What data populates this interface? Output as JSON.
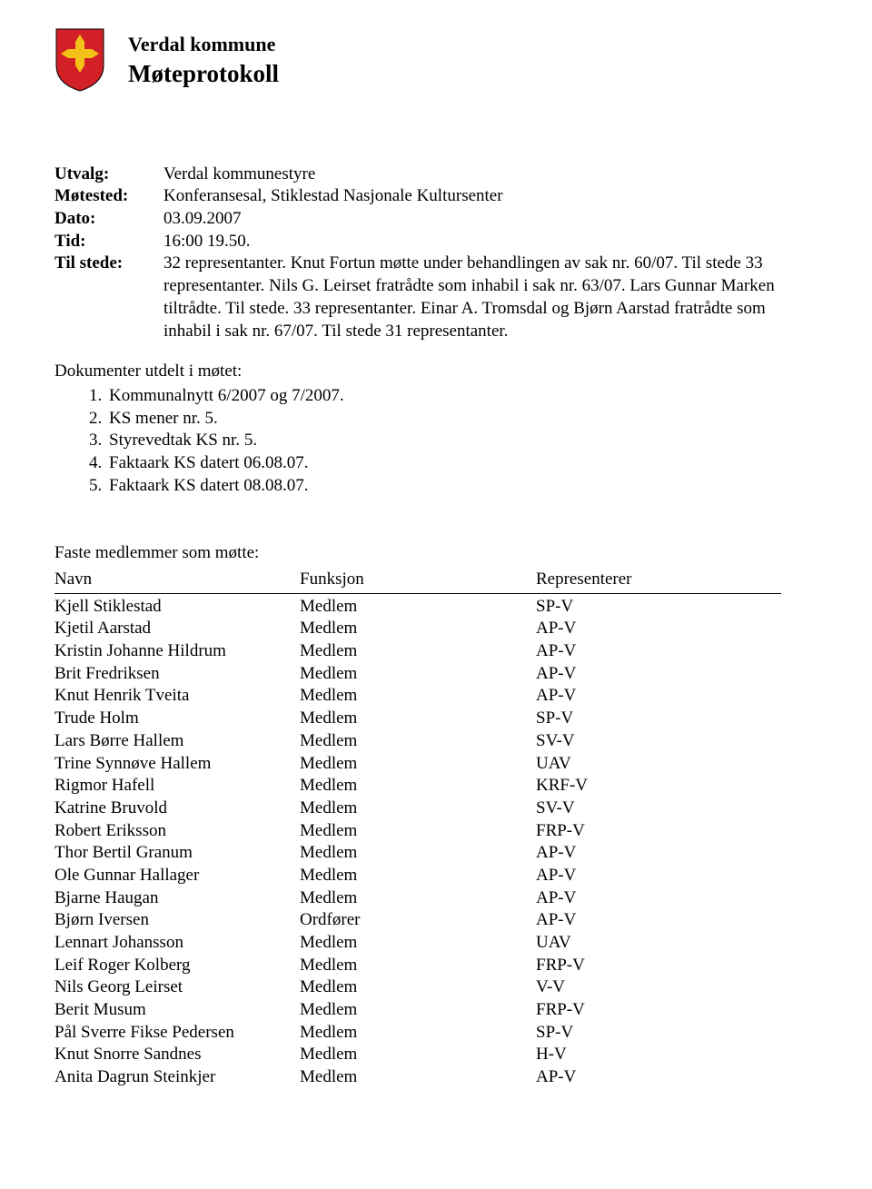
{
  "header": {
    "org": "Verdal kommune",
    "title": "Møteprotokoll"
  },
  "meta": {
    "rows": [
      {
        "label": "Utvalg:",
        "value": "Verdal kommunestyre"
      },
      {
        "label": "Møtested:",
        "value": "Konferansesal, Stiklestad Nasjonale Kultursenter"
      },
      {
        "label": "Dato:",
        "value": "03.09.2007"
      },
      {
        "label": "Tid:",
        "value": "16:00 19.50."
      },
      {
        "label": "Til stede:",
        "value": "32 representanter. Knut Fortun møtte under behandlingen av sak nr. 60/07. Til stede 33 representanter. Nils G. Leirset fratrådte som inhabil i sak nr. 63/07. Lars Gunnar Marken tiltrådte. Til stede. 33 representanter. Einar A. Tromsdal og Bjørn Aarstad fratrådte som inhabil i sak nr. 67/07. Til stede 31 representanter."
      }
    ]
  },
  "documents": {
    "title": "Dokumenter utdelt i møtet:",
    "items": [
      {
        "num": "1.",
        "text": "Kommunalnytt 6/2007 og 7/2007."
      },
      {
        "num": "2.",
        "text": "KS mener nr. 5."
      },
      {
        "num": "3.",
        "text": "Styrevedtak KS nr. 5."
      },
      {
        "num": "4.",
        "text": "Faktaark KS datert 06.08.07."
      },
      {
        "num": "5.",
        "text": "Faktaark KS datert 08.08.07."
      }
    ]
  },
  "members": {
    "title": "Faste medlemmer som møtte:",
    "columns": [
      "Navn",
      "Funksjon",
      "Representerer"
    ],
    "rows": [
      [
        "Kjell Stiklestad",
        "Medlem",
        "SP-V"
      ],
      [
        "Kjetil Aarstad",
        "Medlem",
        "AP-V"
      ],
      [
        "Kristin Johanne Hildrum",
        "Medlem",
        "AP-V"
      ],
      [
        "Brit Fredriksen",
        "Medlem",
        "AP-V"
      ],
      [
        "Knut Henrik Tveita",
        "Medlem",
        "AP-V"
      ],
      [
        "Trude Holm",
        "Medlem",
        "SP-V"
      ],
      [
        "Lars Børre Hallem",
        "Medlem",
        "SV-V"
      ],
      [
        "Trine Synnøve Hallem",
        "Medlem",
        "UAV"
      ],
      [
        "Rigmor Hafell",
        "Medlem",
        "KRF-V"
      ],
      [
        "Katrine Bruvold",
        "Medlem",
        "SV-V"
      ],
      [
        "Robert Eriksson",
        "Medlem",
        "FRP-V"
      ],
      [
        "Thor Bertil Granum",
        "Medlem",
        "AP-V"
      ],
      [
        "Ole Gunnar Hallager",
        "Medlem",
        "AP-V"
      ],
      [
        "Bjarne Haugan",
        "Medlem",
        "AP-V"
      ],
      [
        "Bjørn Iversen",
        "Ordfører",
        "AP-V"
      ],
      [
        "Lennart Johansson",
        "Medlem",
        "UAV"
      ],
      [
        "Leif Roger Kolberg",
        "Medlem",
        "FRP-V"
      ],
      [
        "Nils Georg Leirset",
        "Medlem",
        "V-V"
      ],
      [
        "Berit Musum",
        "Medlem",
        "FRP-V"
      ],
      [
        "Pål Sverre Fikse Pedersen",
        "Medlem",
        "SP-V"
      ],
      [
        "Knut Snorre Sandnes",
        "Medlem",
        "H-V"
      ],
      [
        "Anita Dagrun Steinkjer",
        "Medlem",
        "AP-V"
      ]
    ]
  },
  "shield": {
    "bg": "#d32026",
    "cross": "#f3c218"
  }
}
